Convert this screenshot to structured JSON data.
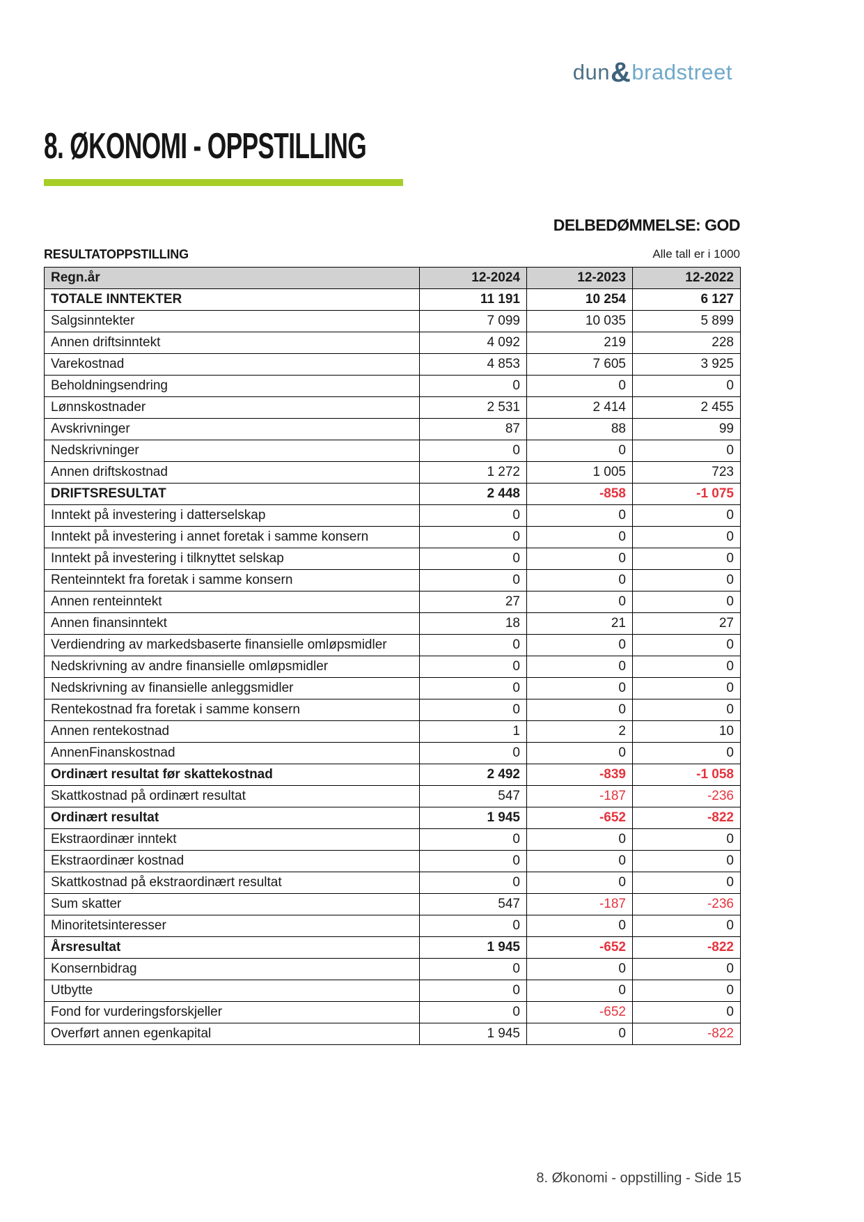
{
  "logo": {
    "dun": "dun",
    "amp": "&",
    "bradstreet": "bradstreet"
  },
  "header": {
    "title": "8. ØKONOMI - OPPSTILLING"
  },
  "assessment": {
    "text": "DELBEDØMMELSE: GOD"
  },
  "section": {
    "title": "RESULTATOPPSTILLING",
    "units_note": "Alle tall er i 1000"
  },
  "footer": {
    "text": "8. Økonomi - oppstilling - Side 15"
  },
  "colors": {
    "brand_green": "#A6CE27",
    "negative_red": "#E5333D",
    "table_header_bg": "#D2D2D2",
    "logo_dun": "#4D7187",
    "logo_amp": "#3D627C",
    "logo_bradstreet": "#6FA8CB"
  },
  "table": {
    "headers": [
      "Regn.år",
      "12-2024",
      "12-2023",
      "12-2022"
    ],
    "rows": [
      {
        "label": "TOTALE INNTEKTER",
        "bold": true,
        "values": [
          "11 191",
          "10 254",
          "6 127"
        ]
      },
      {
        "label": "Salgsinntekter",
        "bold": false,
        "values": [
          "7 099",
          "10 035",
          "5 899"
        ]
      },
      {
        "label": "Annen driftsinntekt",
        "bold": false,
        "values": [
          "4 092",
          "219",
          "228"
        ]
      },
      {
        "label": "Varekostnad",
        "bold": false,
        "values": [
          "4 853",
          "7 605",
          "3 925"
        ]
      },
      {
        "label": "Beholdningsendring",
        "bold": false,
        "values": [
          "0",
          "0",
          "0"
        ]
      },
      {
        "label": "Lønnskostnader",
        "bold": false,
        "values": [
          "2 531",
          "2 414",
          "2 455"
        ]
      },
      {
        "label": "Avskrivninger",
        "bold": false,
        "values": [
          "87",
          "88",
          "99"
        ]
      },
      {
        "label": "Nedskrivninger",
        "bold": false,
        "values": [
          "0",
          "0",
          "0"
        ]
      },
      {
        "label": "Annen driftskostnad",
        "bold": false,
        "values": [
          "1 272",
          "1 005",
          "723"
        ]
      },
      {
        "label": "DRIFTSRESULTAT",
        "bold": true,
        "values": [
          "2 448",
          "-858",
          "-1 075"
        ]
      },
      {
        "label": "Inntekt på investering i datterselskap",
        "bold": false,
        "values": [
          "0",
          "0",
          "0"
        ]
      },
      {
        "label": "Inntekt på investering i annet foretak i samme konsern",
        "bold": false,
        "values": [
          "0",
          "0",
          "0"
        ]
      },
      {
        "label": "Inntekt på investering i tilknyttet selskap",
        "bold": false,
        "values": [
          "0",
          "0",
          "0"
        ]
      },
      {
        "label": "Renteinntekt fra foretak i samme konsern",
        "bold": false,
        "values": [
          "0",
          "0",
          "0"
        ]
      },
      {
        "label": "Annen renteinntekt",
        "bold": false,
        "values": [
          "27",
          "0",
          "0"
        ]
      },
      {
        "label": "Annen finansinntekt",
        "bold": false,
        "values": [
          "18",
          "21",
          "27"
        ]
      },
      {
        "label": "Verdiendring av markedsbaserte finansielle omløpsmidler",
        "bold": false,
        "values": [
          "0",
          "0",
          "0"
        ]
      },
      {
        "label": "Nedskrivning av andre finansielle omløpsmidler",
        "bold": false,
        "values": [
          "0",
          "0",
          "0"
        ]
      },
      {
        "label": "Nedskrivning av finansielle anleggsmidler",
        "bold": false,
        "values": [
          "0",
          "0",
          "0"
        ]
      },
      {
        "label": "Rentekostnad fra foretak i samme konsern",
        "bold": false,
        "values": [
          "0",
          "0",
          "0"
        ]
      },
      {
        "label": "Annen rentekostnad",
        "bold": false,
        "values": [
          "1",
          "2",
          "10"
        ]
      },
      {
        "label": "AnnenFinanskostnad",
        "bold": false,
        "values": [
          "0",
          "0",
          "0"
        ]
      },
      {
        "label": "Ordinært resultat før skattekostnad",
        "bold": true,
        "values": [
          "2 492",
          "-839",
          "-1 058"
        ]
      },
      {
        "label": "Skattkostnad på ordinært resultat",
        "bold": false,
        "values": [
          "547",
          "-187",
          "-236"
        ]
      },
      {
        "label": "Ordinært resultat",
        "bold": true,
        "values": [
          "1 945",
          "-652",
          "-822"
        ]
      },
      {
        "label": "Ekstraordinær inntekt",
        "bold": false,
        "values": [
          "0",
          "0",
          "0"
        ]
      },
      {
        "label": "Ekstraordinær kostnad",
        "bold": false,
        "values": [
          "0",
          "0",
          "0"
        ]
      },
      {
        "label": "Skattkostnad på ekstraordinært resultat",
        "bold": false,
        "values": [
          "0",
          "0",
          "0"
        ]
      },
      {
        "label": "Sum skatter",
        "bold": false,
        "values": [
          "547",
          "-187",
          "-236"
        ]
      },
      {
        "label": "Minoritetsinteresser",
        "bold": false,
        "values": [
          "0",
          "0",
          "0"
        ]
      },
      {
        "label": "Årsresultat",
        "bold": true,
        "values": [
          "1 945",
          "-652",
          "-822"
        ]
      },
      {
        "label": "Konsernbidrag",
        "bold": false,
        "values": [
          "0",
          "0",
          "0"
        ]
      },
      {
        "label": "Utbytte",
        "bold": false,
        "values": [
          "0",
          "0",
          "0"
        ]
      },
      {
        "label": "Fond for vurderingsforskjeller",
        "bold": false,
        "values": [
          "0",
          "-652",
          "0"
        ]
      },
      {
        "label": "Overført annen egenkapital",
        "bold": false,
        "values": [
          "1 945",
          "0",
          "-822"
        ]
      }
    ]
  }
}
